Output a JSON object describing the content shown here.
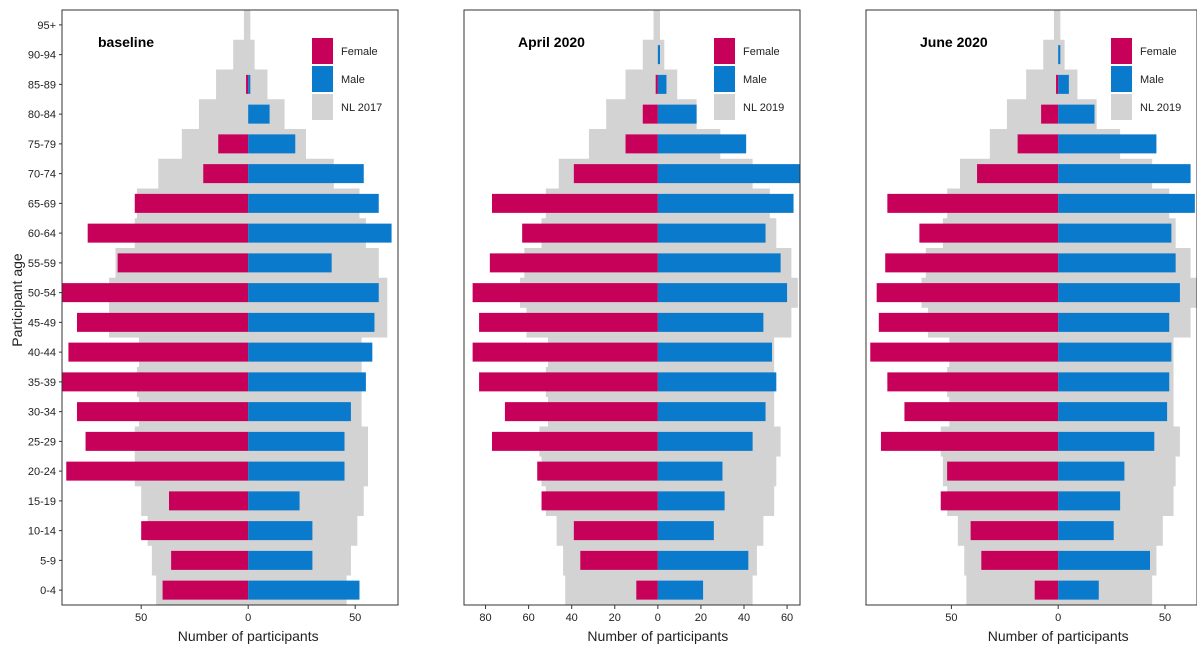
{
  "ylabel": "Participant age",
  "age_groups": [
    "0-4",
    "5-9",
    "10-14",
    "15-19",
    "20-24",
    "25-29",
    "30-34",
    "35-39",
    "40-44",
    "45-49",
    "50-54",
    "55-59",
    "60-64",
    "65-69",
    "70-74",
    "75-79",
    "80-84",
    "85-89",
    "90-94",
    "95+"
  ],
  "colors": {
    "female": "#C7005A",
    "male": "#0A7ACC",
    "reference": "#D3D3D3",
    "frame": "#333333",
    "text": "#222222"
  },
  "chart_data": [
    {
      "type": "bar",
      "orientation": "horizontal",
      "layout": "population-pyramid",
      "title": "baseline",
      "xlabel": "Number of participants",
      "xlim": [
        -87,
        70
      ],
      "x_ticks": [
        -50,
        0,
        50
      ],
      "x_tick_labels": [
        "50",
        "0",
        "50"
      ],
      "legend_position": "top-right",
      "categories": [
        "0-4",
        "5-9",
        "10-14",
        "15-19",
        "20-24",
        "25-29",
        "30-34",
        "35-39",
        "40-44",
        "45-49",
        "50-54",
        "55-59",
        "60-64",
        "65-69",
        "70-74",
        "75-79",
        "80-84",
        "85-89",
        "90-94",
        "95+"
      ],
      "series": [
        {
          "name": "Female",
          "values": [
            -40,
            -36,
            -50,
            -37,
            -85,
            -76,
            -80,
            -87,
            -84,
            -80,
            -87,
            -61,
            -75,
            -53,
            -21,
            -14,
            0,
            -1,
            0,
            0
          ]
        },
        {
          "name": "Male",
          "values": [
            52,
            30,
            30,
            24,
            45,
            45,
            48,
            55,
            58,
            59,
            61,
            39,
            67,
            61,
            54,
            22,
            10,
            1,
            0,
            0
          ]
        },
        {
          "name": "NL 2017",
          "values_female": [
            -43,
            -45,
            -47,
            -50,
            -53,
            -53,
            -51,
            -52,
            -51,
            -65,
            -65,
            -62,
            -53,
            -52,
            -42,
            -31,
            -23,
            -15,
            -7,
            -2
          ],
          "values_male": [
            46,
            48,
            51,
            54,
            56,
            56,
            53,
            53,
            53,
            65,
            65,
            61,
            55,
            52,
            40,
            27,
            17,
            9,
            3,
            1
          ]
        }
      ]
    },
    {
      "type": "bar",
      "orientation": "horizontal",
      "layout": "population-pyramid",
      "title": "April 2020",
      "xlabel": "Number of participants",
      "xlim": [
        -90,
        66
      ],
      "x_ticks": [
        -80,
        -60,
        -40,
        -20,
        0,
        20,
        40,
        60
      ],
      "x_tick_labels": [
        "80",
        "60",
        "40",
        "20",
        "0",
        "20",
        "40",
        "60"
      ],
      "legend_position": "top-right",
      "categories": [
        "0-4",
        "5-9",
        "10-14",
        "15-19",
        "20-24",
        "25-29",
        "30-34",
        "35-39",
        "40-44",
        "45-49",
        "50-54",
        "55-59",
        "60-64",
        "65-69",
        "70-74",
        "75-79",
        "80-84",
        "85-89",
        "90-94",
        "95+"
      ],
      "series": [
        {
          "name": "Female",
          "values": [
            -10,
            -36,
            -39,
            -54,
            -56,
            -77,
            -71,
            -83,
            -86,
            -83,
            -86,
            -78,
            -63,
            -77,
            -39,
            -15,
            -7,
            -1,
            0,
            0
          ]
        },
        {
          "name": "Male",
          "values": [
            21,
            42,
            26,
            31,
            30,
            44,
            50,
            55,
            53,
            49,
            60,
            57,
            50,
            63,
            66,
            41,
            18,
            4,
            1,
            0
          ]
        },
        {
          "name": "NL 2019",
          "values_female": [
            -43,
            -44,
            -47,
            -52,
            -54,
            -55,
            -51,
            -52,
            -51,
            -61,
            -64,
            -62,
            -54,
            -52,
            -46,
            -32,
            -24,
            -15,
            -7,
            -2
          ],
          "values_male": [
            44,
            46,
            49,
            54,
            55,
            57,
            54,
            54,
            54,
            62,
            65,
            62,
            55,
            52,
            44,
            29,
            18,
            9,
            3,
            1
          ]
        }
      ]
    },
    {
      "type": "bar",
      "orientation": "horizontal",
      "layout": "population-pyramid",
      "title": "June 2020",
      "xlabel": "Number of participants",
      "xlim": [
        -90,
        65
      ],
      "x_ticks": [
        -50,
        0,
        50
      ],
      "x_tick_labels": [
        "50",
        "0",
        "50"
      ],
      "legend_position": "top-right",
      "categories": [
        "0-4",
        "5-9",
        "10-14",
        "15-19",
        "20-24",
        "25-29",
        "30-34",
        "35-39",
        "40-44",
        "45-49",
        "50-54",
        "55-59",
        "60-64",
        "65-69",
        "70-74",
        "75-79",
        "80-84",
        "85-89",
        "90-94",
        "95+"
      ],
      "series": [
        {
          "name": "Female",
          "values": [
            -11,
            -36,
            -41,
            -55,
            -52,
            -83,
            -72,
            -80,
            -88,
            -84,
            -85,
            -81,
            -65,
            -80,
            -38,
            -19,
            -8,
            -1,
            0,
            0
          ]
        },
        {
          "name": "Male",
          "values": [
            19,
            43,
            26,
            29,
            31,
            45,
            51,
            52,
            53,
            52,
            57,
            55,
            53,
            64,
            62,
            46,
            17,
            5,
            1,
            0
          ]
        },
        {
          "name": "NL 2019",
          "values_female": [
            -43,
            -44,
            -47,
            -52,
            -54,
            -55,
            -51,
            -52,
            -51,
            -61,
            -64,
            -62,
            -54,
            -52,
            -46,
            -32,
            -24,
            -15,
            -7,
            -2
          ],
          "values_male": [
            44,
            46,
            49,
            54,
            55,
            57,
            54,
            54,
            54,
            62,
            65,
            62,
            55,
            52,
            44,
            29,
            18,
            9,
            3,
            1
          ]
        }
      ]
    }
  ]
}
